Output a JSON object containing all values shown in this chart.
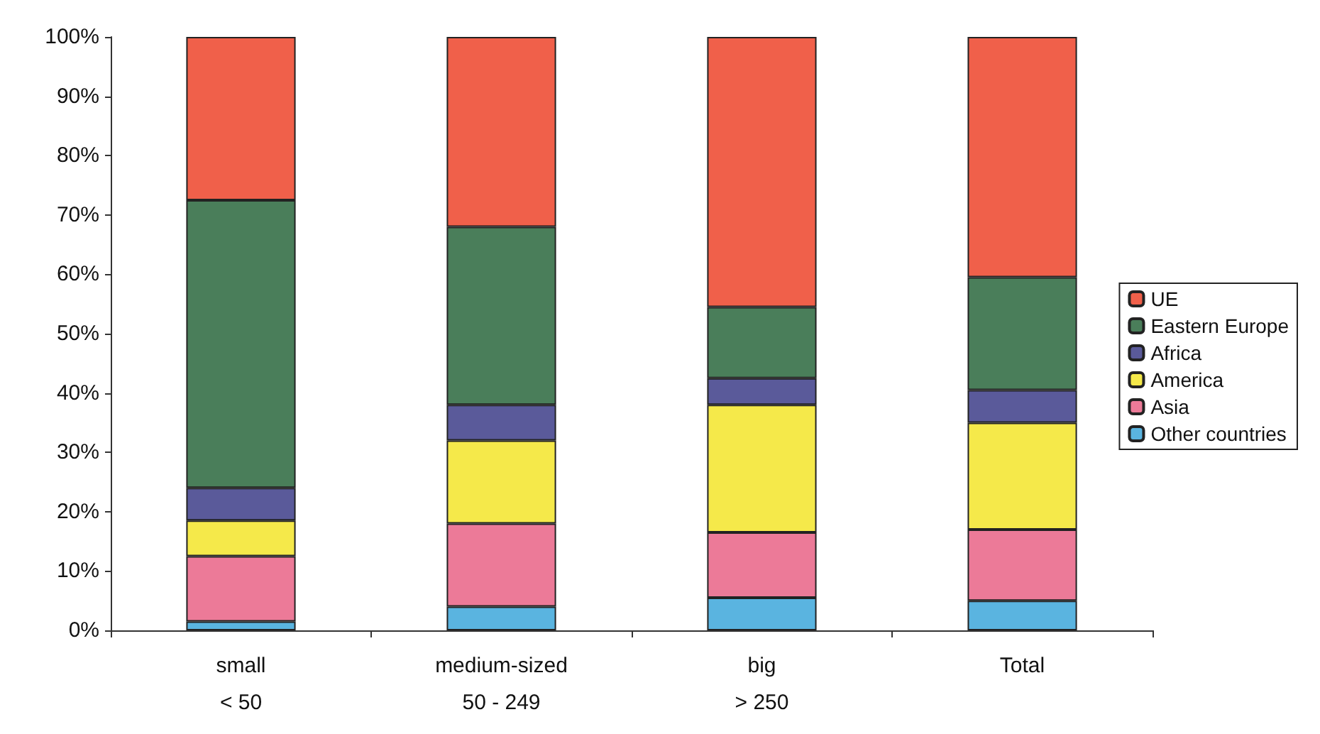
{
  "chart_data": {
    "type": "bar",
    "stacked": true,
    "categories": [
      "small\n< 50",
      "medium-sized\n50 - 249",
      "big\n> 250",
      "Total"
    ],
    "series": [
      {
        "name": "Other countries",
        "color": "#5ab4e0",
        "values": [
          1.5,
          4,
          5.5,
          5
        ]
      },
      {
        "name": "Asia",
        "color": "#ec7a98",
        "values": [
          11,
          14,
          11,
          12
        ]
      },
      {
        "name": "America",
        "color": "#f5e94a",
        "values": [
          6,
          14,
          21.5,
          18
        ]
      },
      {
        "name": "Africa",
        "color": "#5a5a9a",
        "values": [
          5.5,
          6,
          4.5,
          5.5
        ]
      },
      {
        "name": "Eastern Europe",
        "color": "#4a7e5a",
        "values": [
          48.5,
          30,
          12,
          19
        ]
      },
      {
        "name": "UE",
        "color": "#f0604a",
        "values": [
          27.5,
          32,
          45.5,
          40.5
        ]
      }
    ],
    "ylim": [
      0,
      100
    ],
    "yticks": [
      {
        "value": 0,
        "label": "0%"
      },
      {
        "value": 10,
        "label": "10%"
      },
      {
        "value": 20,
        "label": "20%"
      },
      {
        "value": 30,
        "label": "30%"
      },
      {
        "value": 40,
        "label": "40%"
      },
      {
        "value": 50,
        "label": "50%"
      },
      {
        "value": 60,
        "label": "60%"
      },
      {
        "value": 70,
        "label": "70%"
      },
      {
        "value": 80,
        "label": "80%"
      },
      {
        "value": 90,
        "label": "90%"
      },
      {
        "value": 100,
        "label": "100%"
      }
    ],
    "grid": false,
    "legend": "right"
  }
}
